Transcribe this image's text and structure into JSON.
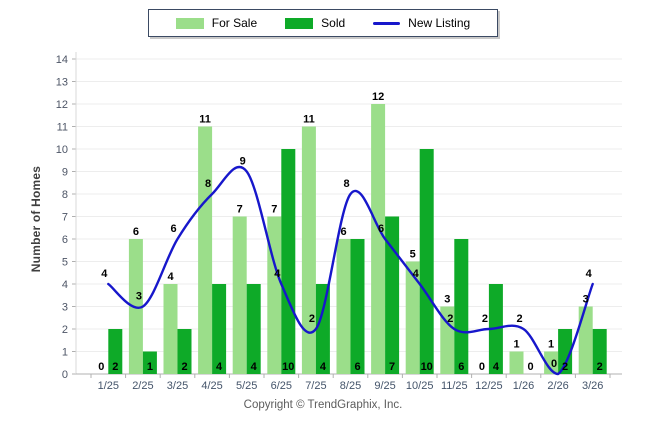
{
  "copyright": "Copyright © TrendGraphix, Inc.",
  "colors": {
    "for_sale": "#9BDE8A",
    "sold": "#0EAA28",
    "new_listing": "#1717CB",
    "grid": "#EDEDED",
    "axis": "#B0B0B0",
    "y_axis_line": "#D8D8D8",
    "tick_label": "#4D5566",
    "x_label": "#44546A",
    "data_label": "#000000"
  },
  "chart_data": {
    "type": "bar",
    "title": "",
    "xlabel": "",
    "ylabel": "Number of Homes",
    "ylim": [
      0,
      14
    ],
    "ytick_step": 1,
    "grid": "horizontal",
    "legend_position": "top",
    "categories": [
      "1/25",
      "2/25",
      "3/25",
      "4/25",
      "5/25",
      "6/25",
      "7/25",
      "8/25",
      "9/25",
      "10/25",
      "11/25",
      "12/25",
      "1/26",
      "2/26",
      "3/26"
    ],
    "series": [
      {
        "name": "For Sale",
        "type": "bar",
        "values": [
          0,
          6,
          4,
          11,
          7,
          7,
          11,
          6,
          12,
          5,
          3,
          0,
          1,
          1,
          3
        ]
      },
      {
        "name": "Sold",
        "type": "bar",
        "values": [
          2,
          1,
          2,
          4,
          4,
          10,
          4,
          6,
          7,
          10,
          6,
          4,
          0,
          2,
          2
        ]
      },
      {
        "name": "New Listing",
        "type": "line",
        "values": [
          4,
          3,
          6,
          8,
          9,
          4,
          2,
          8,
          6,
          4,
          2,
          2,
          2,
          0,
          4
        ]
      }
    ]
  }
}
